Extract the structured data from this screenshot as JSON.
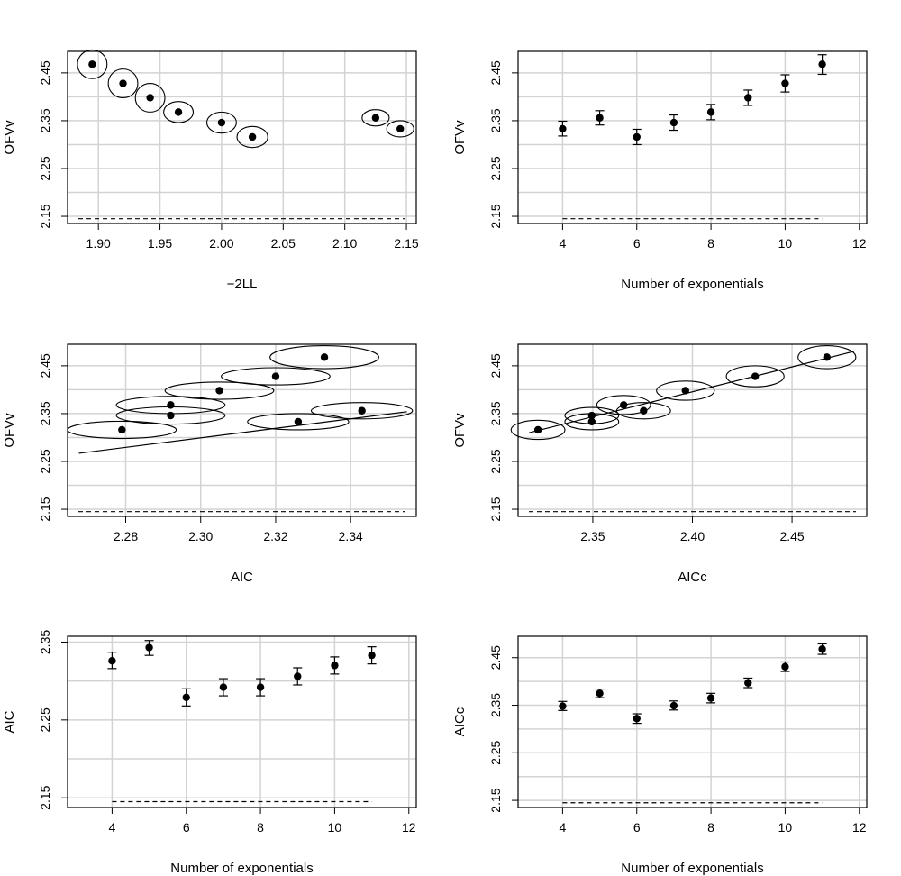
{
  "chart_data": [
    {
      "id": "p1",
      "type": "scatter",
      "errorbars": "ellipse",
      "xlabel": "−2LL",
      "ylabel": "OFVv",
      "xlim": [
        1.875,
        2.158
      ],
      "ylim": [
        2.135,
        2.495
      ],
      "xticks": [
        "1.90",
        "1.95",
        "2.00",
        "2.05",
        "2.10",
        "2.15"
      ],
      "yticks": [
        "2.15",
        "2.25",
        "2.35",
        "2.45"
      ],
      "grid": true,
      "ref_y": 2.145,
      "points": [
        {
          "x": 1.895,
          "y": 2.468,
          "rx": 0.012,
          "ry": 0.03
        },
        {
          "x": 1.92,
          "y": 2.428,
          "rx": 0.012,
          "ry": 0.03
        },
        {
          "x": 1.942,
          "y": 2.398,
          "rx": 0.012,
          "ry": 0.03
        },
        {
          "x": 1.965,
          "y": 2.368,
          "rx": 0.012,
          "ry": 0.022
        },
        {
          "x": 2.0,
          "y": 2.346,
          "rx": 0.012,
          "ry": 0.022
        },
        {
          "x": 2.025,
          "y": 2.316,
          "rx": 0.0125,
          "ry": 0.022
        },
        {
          "x": 2.125,
          "y": 2.356,
          "rx": 0.011,
          "ry": 0.017
        },
        {
          "x": 2.145,
          "y": 2.333,
          "rx": 0.011,
          "ry": 0.017
        }
      ]
    },
    {
      "id": "p2",
      "type": "scatter",
      "errorbars": "vertical",
      "xlabel": "Number of exponentials",
      "ylabel": "OFVv",
      "xlim": [
        2.8,
        12.2
      ],
      "ylim": [
        2.135,
        2.495
      ],
      "xticks": [
        "4",
        "6",
        "8",
        "10",
        "12"
      ],
      "yticks": [
        "2.15",
        "2.25",
        "2.35",
        "2.45"
      ],
      "grid": true,
      "ref_y": 2.145,
      "ref_x": [
        4,
        11
      ],
      "points": [
        {
          "x": 4,
          "y": 2.333,
          "lo": 2.318,
          "hi": 2.349
        },
        {
          "x": 5,
          "y": 2.356,
          "lo": 2.341,
          "hi": 2.371
        },
        {
          "x": 6,
          "y": 2.316,
          "lo": 2.3,
          "hi": 2.332
        },
        {
          "x": 7,
          "y": 2.346,
          "lo": 2.33,
          "hi": 2.362
        },
        {
          "x": 8,
          "y": 2.368,
          "lo": 2.352,
          "hi": 2.384
        },
        {
          "x": 9,
          "y": 2.398,
          "lo": 2.382,
          "hi": 2.414
        },
        {
          "x": 10,
          "y": 2.428,
          "lo": 2.41,
          "hi": 2.446
        },
        {
          "x": 11,
          "y": 2.468,
          "lo": 2.447,
          "hi": 2.488
        }
      ]
    },
    {
      "id": "p3",
      "type": "scatter",
      "errorbars": "ellipse",
      "xlabel": "AIC",
      "ylabel": "OFVv",
      "xlim": [
        2.2645,
        2.3575
      ],
      "ylim": [
        2.135,
        2.495
      ],
      "xticks": [
        "2.28",
        "2.30",
        "2.32",
        "2.34"
      ],
      "yticks": [
        "2.15",
        "2.25",
        "2.35",
        "2.45"
      ],
      "grid": true,
      "ref_y": 2.145,
      "fit_line": {
        "x1": 2.2675,
        "y1": 2.267,
        "x2": 2.355,
        "y2": 2.354
      },
      "points": [
        {
          "x": 2.279,
          "y": 2.316,
          "rx": 0.0145,
          "ry": 0.018
        },
        {
          "x": 2.292,
          "y": 2.346,
          "rx": 0.0145,
          "ry": 0.018
        },
        {
          "x": 2.292,
          "y": 2.368,
          "rx": 0.0145,
          "ry": 0.018
        },
        {
          "x": 2.305,
          "y": 2.398,
          "rx": 0.0145,
          "ry": 0.018
        },
        {
          "x": 2.32,
          "y": 2.428,
          "rx": 0.0145,
          "ry": 0.018
        },
        {
          "x": 2.333,
          "y": 2.468,
          "rx": 0.0145,
          "ry": 0.024
        },
        {
          "x": 2.326,
          "y": 2.333,
          "rx": 0.0135,
          "ry": 0.017
        },
        {
          "x": 2.343,
          "y": 2.356,
          "rx": 0.0135,
          "ry": 0.017
        }
      ]
    },
    {
      "id": "p4",
      "type": "scatter",
      "errorbars": "ellipse",
      "xlabel": "AICc",
      "ylabel": "OFVv",
      "xlim": [
        2.3125,
        2.4875
      ],
      "ylim": [
        2.135,
        2.495
      ],
      "xticks": [
        "2.35",
        "2.40",
        "2.45"
      ],
      "yticks": [
        "2.15",
        "2.25",
        "2.35",
        "2.45"
      ],
      "grid": true,
      "ref_y": 2.145,
      "fit_line": {
        "x1": 2.318,
        "y1": 2.31,
        "x2": 2.481,
        "y2": 2.48
      },
      "points": [
        {
          "x": 2.3225,
          "y": 2.316,
          "rx": 0.0135,
          "ry": 0.02
        },
        {
          "x": 2.3495,
          "y": 2.333,
          "rx": 0.0135,
          "ry": 0.017
        },
        {
          "x": 2.3495,
          "y": 2.346,
          "rx": 0.0135,
          "ry": 0.017
        },
        {
          "x": 2.3655,
          "y": 2.368,
          "rx": 0.0135,
          "ry": 0.02
        },
        {
          "x": 2.3755,
          "y": 2.356,
          "rx": 0.0135,
          "ry": 0.017
        },
        {
          "x": 2.3965,
          "y": 2.398,
          "rx": 0.0145,
          "ry": 0.02
        },
        {
          "x": 2.4315,
          "y": 2.428,
          "rx": 0.0145,
          "ry": 0.022
        },
        {
          "x": 2.4675,
          "y": 2.468,
          "rx": 0.0145,
          "ry": 0.024
        }
      ]
    },
    {
      "id": "p5",
      "type": "scatter",
      "errorbars": "vertical",
      "xlabel": "Number of exponentials",
      "ylabel": "AIC",
      "xlim": [
        2.8,
        12.2
      ],
      "ylim": [
        2.1375,
        2.3575
      ],
      "xticks": [
        "4",
        "6",
        "8",
        "10",
        "12"
      ],
      "yticks": [
        "2.15",
        "2.25",
        "2.35"
      ],
      "grid": true,
      "ref_y": 2.145,
      "ref_x": [
        4,
        11
      ],
      "points": [
        {
          "x": 4,
          "y": 2.326,
          "lo": 2.316,
          "hi": 2.337
        },
        {
          "x": 5,
          "y": 2.343,
          "lo": 2.333,
          "hi": 2.352
        },
        {
          "x": 6,
          "y": 2.279,
          "lo": 2.268,
          "hi": 2.29
        },
        {
          "x": 7,
          "y": 2.292,
          "lo": 2.281,
          "hi": 2.303
        },
        {
          "x": 8,
          "y": 2.292,
          "lo": 2.281,
          "hi": 2.303
        },
        {
          "x": 9,
          "y": 2.306,
          "lo": 2.295,
          "hi": 2.317
        },
        {
          "x": 10,
          "y": 2.32,
          "lo": 2.309,
          "hi": 2.331
        },
        {
          "x": 11,
          "y": 2.333,
          "lo": 2.322,
          "hi": 2.344
        }
      ]
    },
    {
      "id": "p6",
      "type": "scatter",
      "errorbars": "vertical",
      "xlabel": "Number of exponentials",
      "ylabel": "AICc",
      "xlim": [
        2.8,
        12.2
      ],
      "ylim": [
        2.135,
        2.495
      ],
      "xticks": [
        "4",
        "6",
        "8",
        "10",
        "12"
      ],
      "yticks": [
        "2.15",
        "2.25",
        "2.35",
        "2.45"
      ],
      "grid": true,
      "ref_y": 2.145,
      "ref_x": [
        4,
        11
      ],
      "points": [
        {
          "x": 4,
          "y": 2.348,
          "lo": 2.339,
          "hi": 2.358
        },
        {
          "x": 5,
          "y": 2.375,
          "lo": 2.366,
          "hi": 2.384
        },
        {
          "x": 6,
          "y": 2.322,
          "lo": 2.312,
          "hi": 2.332
        },
        {
          "x": 7,
          "y": 2.349,
          "lo": 2.34,
          "hi": 2.359
        },
        {
          "x": 8,
          "y": 2.365,
          "lo": 2.355,
          "hi": 2.375
        },
        {
          "x": 9,
          "y": 2.397,
          "lo": 2.387,
          "hi": 2.407
        },
        {
          "x": 10,
          "y": 2.431,
          "lo": 2.421,
          "hi": 2.441
        },
        {
          "x": 11,
          "y": 2.468,
          "lo": 2.457,
          "hi": 2.479
        }
      ]
    }
  ]
}
